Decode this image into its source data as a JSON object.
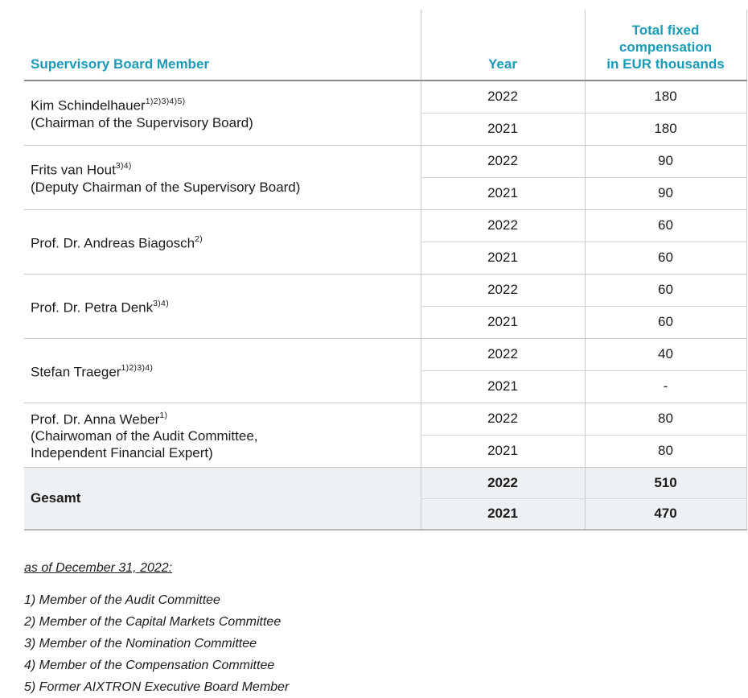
{
  "colors": {
    "accent_teal": "#1a9bb8",
    "total_row_bg": "#eef1f3",
    "border_light": "#c8cbce",
    "border_dark": "#898b8d"
  },
  "table": {
    "headers": {
      "member": "Supervisory Board Member",
      "year": "Year",
      "compensation": "Total fixed\ncompensation\nin EUR thousands"
    },
    "members": [
      {
        "name": "Kim Schindelhauer",
        "sup": "1)2)3)4)5)",
        "role": "(Chairman of the Supervisory Board)",
        "rows": [
          {
            "year": "2022",
            "value": "180"
          },
          {
            "year": "2021",
            "value": "180"
          }
        ]
      },
      {
        "name": "Frits van Hout",
        "sup": "3)4)",
        "role": "(Deputy Chairman of the Supervisory Board)",
        "rows": [
          {
            "year": "2022",
            "value": "90"
          },
          {
            "year": "2021",
            "value": "90"
          }
        ]
      },
      {
        "name": "Prof. Dr. Andreas Biagosch",
        "sup": "2)",
        "role": "",
        "rows": [
          {
            "year": "2022",
            "value": "60"
          },
          {
            "year": "2021",
            "value": "60"
          }
        ]
      },
      {
        "name": "Prof. Dr. Petra Denk",
        "sup": "3)4)",
        "role": "",
        "rows": [
          {
            "year": "2022",
            "value": "60"
          },
          {
            "year": "2021",
            "value": "60"
          }
        ]
      },
      {
        "name": "Stefan Traeger",
        "sup": "1)2)3)4)",
        "role": "",
        "rows": [
          {
            "year": "2022",
            "value": "40"
          },
          {
            "year": "2021",
            "value": "-"
          }
        ]
      },
      {
        "name": "Prof. Dr. Anna Weber",
        "sup": "1)",
        "role": "(Chairwoman of the Audit Committee,",
        "role2": "Independent Financial Expert)",
        "rows": [
          {
            "year": "2022",
            "value": "80"
          },
          {
            "year": "2021",
            "value": "80"
          }
        ]
      }
    ],
    "total": {
      "label": "Gesamt",
      "rows": [
        {
          "year": "2022",
          "value": "510"
        },
        {
          "year": "2021",
          "value": "470"
        }
      ]
    }
  },
  "footnotes": {
    "heading": "as of December 31, 2022:",
    "items": [
      "1) Member of the Audit Committee",
      "2) Member of the Capital Markets Committee",
      "3) Member of the Nomination Committee",
      "4) Member of the Compensation Committee",
      "5) Former AIXTRON Executive Board Member"
    ]
  }
}
